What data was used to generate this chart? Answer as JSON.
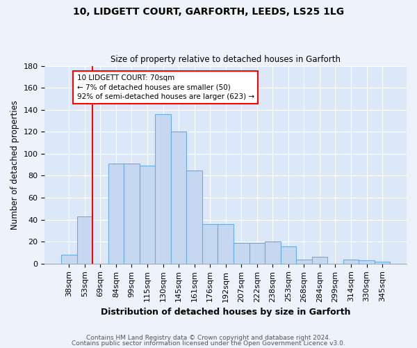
{
  "title1": "10, LIDGETT COURT, GARFORTH, LEEDS, LS25 1LG",
  "title2": "Size of property relative to detached houses in Garforth",
  "xlabel": "Distribution of detached houses by size in Garforth",
  "ylabel": "Number of detached properties",
  "categories": [
    "38sqm",
    "53sqm",
    "69sqm",
    "84sqm",
    "99sqm",
    "115sqm",
    "130sqm",
    "145sqm",
    "161sqm",
    "176sqm",
    "192sqm",
    "207sqm",
    "222sqm",
    "238sqm",
    "253sqm",
    "268sqm",
    "284sqm",
    "299sqm",
    "314sqm",
    "330sqm",
    "345sqm"
  ],
  "values": [
    8,
    43,
    0,
    91,
    91,
    89,
    136,
    120,
    85,
    36,
    36,
    19,
    19,
    20,
    16,
    4,
    6,
    0,
    4,
    3,
    2
  ],
  "bar_color": "#c5d8f0",
  "bar_edge_color": "#6aace0",
  "annotation_line1": "10 LIDGETT COURT: 70sqm",
  "annotation_line2": "← 7% of detached houses are smaller (50)",
  "annotation_line3": "92% of semi-detached houses are larger (623) →",
  "red_line_index": 2,
  "ylim": [
    0,
    180
  ],
  "yticks": [
    0,
    20,
    40,
    60,
    80,
    100,
    120,
    140,
    160,
    180
  ],
  "footnote1": "Contains HM Land Registry data © Crown copyright and database right 2024.",
  "footnote2": "Contains public sector information licensed under the Open Government Licence v3.0.",
  "bg_color": "#eef2fb",
  "plot_bg_color": "#dce8f8"
}
